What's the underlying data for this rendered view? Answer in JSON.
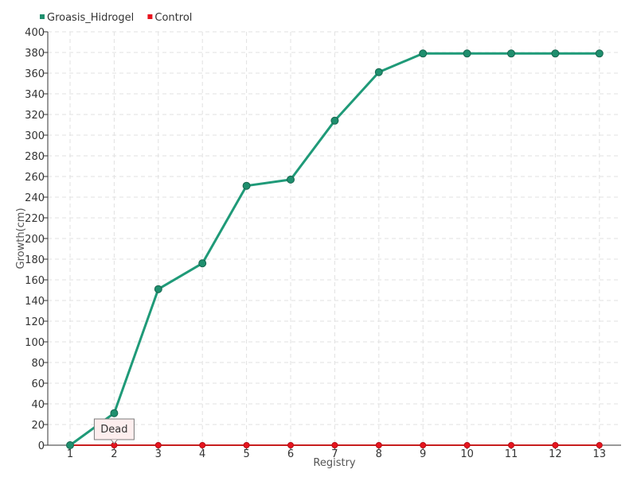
{
  "chart_data": {
    "type": "line",
    "xlabel": "Registry",
    "ylabel": "Growth(cm)",
    "categories": [
      "1",
      "2",
      "3",
      "4",
      "5",
      "6",
      "7",
      "8",
      "9",
      "10",
      "11",
      "12",
      "13"
    ],
    "ylim": [
      0,
      400
    ],
    "yticks": [
      0,
      20,
      40,
      60,
      80,
      100,
      120,
      140,
      160,
      180,
      200,
      220,
      240,
      260,
      280,
      300,
      320,
      340,
      360,
      380,
      400
    ],
    "grid": true,
    "legend_position": "top-left",
    "series": [
      {
        "name": "Groasis_Hidrogel",
        "color": "#1f9a78",
        "marker_color": "#1f8f6e",
        "values": [
          0,
          31,
          151,
          176,
          251,
          257,
          314,
          361,
          379,
          379,
          379,
          379,
          379
        ]
      },
      {
        "name": "Control",
        "color": "#c81e1e",
        "marker_color": "#e8141e",
        "values": [
          0,
          0,
          0,
          0,
          0,
          0,
          0,
          0,
          0,
          0,
          0,
          0,
          0
        ]
      }
    ],
    "annotation": {
      "text": "Dead",
      "series": "Control",
      "category": "2"
    }
  }
}
